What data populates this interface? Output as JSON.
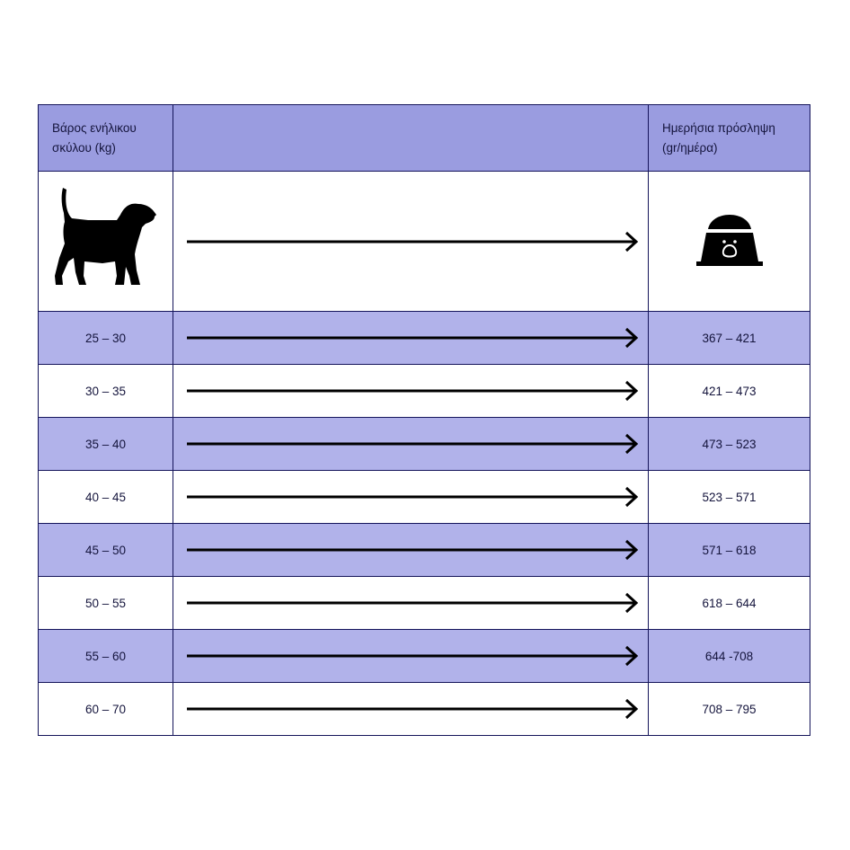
{
  "header": {
    "weight_label": "Βάρος ενήλικου σκύλου (kg)",
    "middle_label": "",
    "intake_label": "Ημερήσια πρόσληψη (gr/ημέρα)"
  },
  "icons": {
    "left": "dog-silhouette-icon",
    "right": "dog-food-bowl-icon",
    "connector": "arrow-right-icon"
  },
  "colors": {
    "header_bg": "#9a9ce0",
    "stripe_bg": "#b1b2ea",
    "border": "#14145a"
  },
  "rows": [
    {
      "weight": "25 – 30",
      "intake": "367 – 421"
    },
    {
      "weight": "30 – 35",
      "intake": "421 – 473"
    },
    {
      "weight": "35 – 40",
      "intake": "473 – 523"
    },
    {
      "weight": "40 – 45",
      "intake": "523 – 571"
    },
    {
      "weight": "45 – 50",
      "intake": "571 – 618"
    },
    {
      "weight": "50 – 55",
      "intake": "618 – 644"
    },
    {
      "weight": "55 – 60",
      "intake": "644 -708"
    },
    {
      "weight": "60 – 70",
      "intake": "708 – 795"
    }
  ]
}
